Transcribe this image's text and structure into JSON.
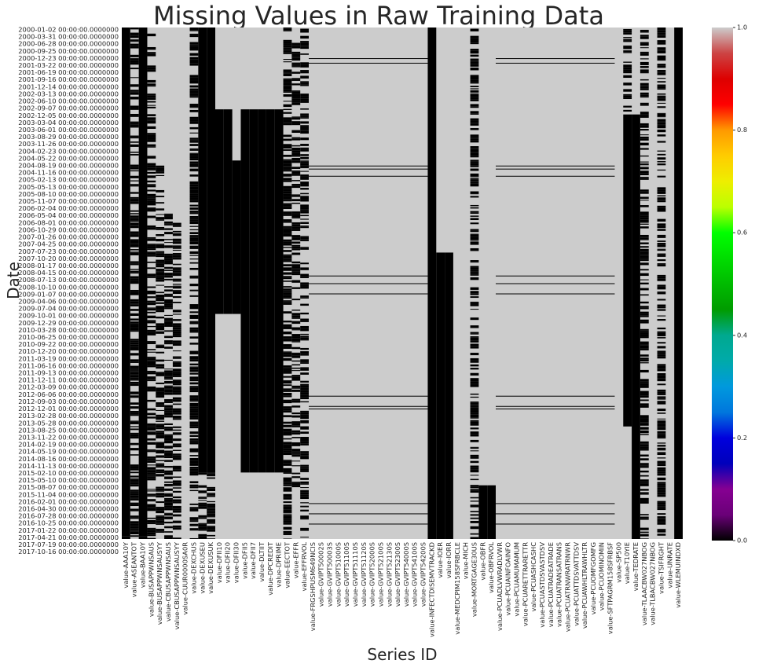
{
  "chart_data": {
    "type": "heatmap",
    "title": "Missing Values in Raw Training Data",
    "xlabel": "Series ID",
    "ylabel": "Date",
    "y_tick_labels": [
      "2000-01-02 00:00:00.0000000",
      "2000-03-31 00:00:00.0000000",
      "2000-06-28 00:00:00.0000000",
      "2000-09-25 00:00:00.0000000",
      "2000-12-23 00:00:00.0000000",
      "2001-03-22 00:00:00.0000000",
      "2001-06-19 00:00:00.0000000",
      "2001-09-16 00:00:00.0000000",
      "2001-12-14 00:00:00.0000000",
      "2002-03-13 00:00:00.0000000",
      "2002-06-10 00:00:00.0000000",
      "2002-09-07 00:00:00.0000000",
      "2002-12-05 00:00:00.0000000",
      "2003-03-04 00:00:00.0000000",
      "2003-06-01 00:00:00.0000000",
      "2003-08-29 00:00:00.0000000",
      "2003-11-26 00:00:00.0000000",
      "2004-02-23 00:00:00.0000000",
      "2004-05-22 00:00:00.0000000",
      "2004-08-19 00:00:00.0000000",
      "2004-11-16 00:00:00.0000000",
      "2005-02-13 00:00:00.0000000",
      "2005-05-13 00:00:00.0000000",
      "2005-08-10 00:00:00.0000000",
      "2005-11-07 00:00:00.0000000",
      "2006-02-04 00:00:00.0000000",
      "2006-05-04 00:00:00.0000000",
      "2006-08-01 00:00:00.0000000",
      "2006-10-29 00:00:00.0000000",
      "2007-01-26 00:00:00.0000000",
      "2007-04-25 00:00:00.0000000",
      "2007-07-23 00:00:00.0000000",
      "2007-10-20 00:00:00.0000000",
      "2008-01-17 00:00:00.0000000",
      "2008-04-15 00:00:00.0000000",
      "2008-07-13 00:00:00.0000000",
      "2008-10-10 00:00:00.0000000",
      "2009-01-07 00:00:00.0000000",
      "2009-04-06 00:00:00.0000000",
      "2009-07-04 00:00:00.0000000",
      "2009-10-01 00:00:00.0000000",
      "2009-12-29 00:00:00.0000000",
      "2010-03-28 00:00:00.0000000",
      "2010-06-25 00:00:00.0000000",
      "2010-09-22 00:00:00.0000000",
      "2010-12-20 00:00:00.0000000",
      "2011-03-19 00:00:00.0000000",
      "2011-06-16 00:00:00.0000000",
      "2011-09-13 00:00:00.0000000",
      "2011-12-11 00:00:00.0000000",
      "2012-03-09 00:00:00.0000000",
      "2012-06-06 00:00:00.0000000",
      "2012-09-03 00:00:00.0000000",
      "2012-12-01 00:00:00.0000000",
      "2013-02-28 00:00:00.0000000",
      "2013-05-28 00:00:00.0000000",
      "2013-08-25 00:00:00.0000000",
      "2013-11-22 00:00:00.0000000",
      "2014-02-19 00:00:00.0000000",
      "2014-05-19 00:00:00.0000000",
      "2014-08-16 00:00:00.0000000",
      "2014-11-13 00:00:00.0000000",
      "2015-02-10 00:00:00.0000000",
      "2015-05-10 00:00:00.0000000",
      "2015-08-07 00:00:00.0000000",
      "2015-11-04 00:00:00.0000000",
      "2016-02-01 00:00:00.0000000",
      "2016-04-30 00:00:00.0000000",
      "2016-07-28 00:00:00.0000000",
      "2016-10-25 00:00:00.0000000",
      "2017-01-22 00:00:00.0000000",
      "2017-04-21 00:00:00.0000000",
      "2017-07-19 00:00:00.0000000",
      "2017-10-16 00:00:00.0000000"
    ],
    "x_tick_labels": [
      "value-AAA10Y",
      "value-ASEANTOT",
      "value-BAA10Y",
      "value-BUSAPPWNSAUS",
      "value-BUSAPPWNSAUSYY",
      "value-CBUSAPPWNSAUS",
      "value-CBUSAPPWNSAUSYY",
      "value-CUUR0000SA0R",
      "value-DEXCHUS",
      "value-DEXUSEU",
      "value-DEXUSUK",
      "value-DFII10",
      "value-DFII20",
      "value-DFII30",
      "value-DFII5",
      "value-DFII7",
      "value-DLTIIT",
      "value-DPCREDIT",
      "value-DPRIME",
      "value-EECTOT",
      "value-EFFR",
      "value-EFFRVOL",
      "value-FRGSHPUSM649NCIS",
      "value-GVIPT50002S",
      "value-GVIPT50003S",
      "value-GVIPT51000S",
      "value-GVIPT51100S",
      "value-GVIPT51110S",
      "value-GVIPT51120S",
      "value-GVIPT52000S",
      "value-GVIPT52100S",
      "value-GVIPT52130S",
      "value-GVIPT52300S",
      "value-GVIPT54000S",
      "value-GVIPT54100S",
      "value-GVIPT54200S",
      "value-INFECTDISEMVTRACKD",
      "value-IOER",
      "value-IORR",
      "value-MEDCPIM158SFRBCLE",
      "value-MICH",
      "value-MORTGAGE30US",
      "value-OBFR",
      "value-OBFRVOL",
      "value-PCUADLVWRADLVWR",
      "value-PCUAINFOAINFO",
      "value-PCUAMUMAMUM",
      "value-PCUARETTRARETTR",
      "value-PCUASHCASHC",
      "value-PCUASTDSVASTDSV",
      "value-PCUATRADEATRADE",
      "value-PCUATRANSATRANS",
      "value-PCUATRNWRATRNWR",
      "value-PCUATTDSVATTDSV",
      "value-PCUAWHLTRAWHLTR",
      "value-PCUOMFGOMFG",
      "value-PCUOMINOMIN",
      "value-SFTPAGRM158SFRBSF",
      "value-SP500",
      "value-T10YIE",
      "value-TEDRATE",
      "value-TLAACBW027NBOG",
      "value-TLBACBW027NBOG",
      "value-TSIFRGHT",
      "value-UNRATE",
      "value-WLEMUINDXD"
    ],
    "value_range": [
      0,
      1
    ],
    "value_meaning": {
      "0": "missing",
      "1": "present"
    },
    "colormap": "nipy_spectral",
    "colorbar_ticks": [
      "0.0",
      "0.2",
      "0.4",
      "0.6",
      "0.8",
      "1.0"
    ],
    "colors": {
      "present": "#cccccc",
      "missing": "#000000"
    },
    "grid": false,
    "legend": "colorbar right"
  }
}
